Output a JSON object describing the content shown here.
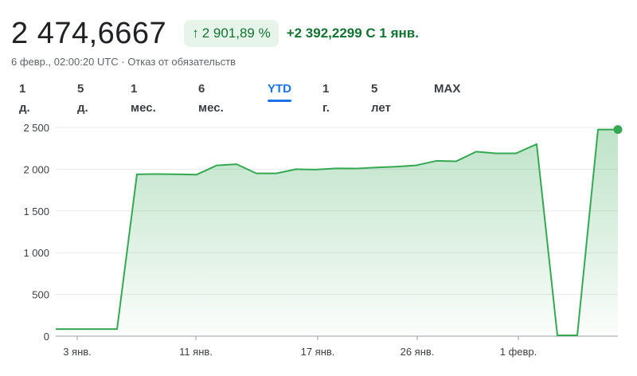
{
  "header": {
    "price": "2 474,6667",
    "change_percent": "2 901,89 %",
    "change_arrow": "↑",
    "change_abs": "+2 392,2299 С 1 янв.",
    "subline": "6 февр., 02:00:20 UTC · Отказ от обязательств"
  },
  "tabs": [
    "1 д.",
    "5 д.",
    "1 мес.",
    "6 мес.",
    "YTD",
    "1 г.",
    "5 лет",
    "MAX"
  ],
  "active_tab": "YTD",
  "colors": {
    "line": "#34a853",
    "positive": "#137333",
    "badge_bg": "#e6f4ea",
    "active_tab": "#1a73e8"
  },
  "chart_data": {
    "type": "area",
    "x_ticks": [
      "3 янв.",
      "11 янв.",
      "17 янв.",
      "26 янв.",
      "1 февр."
    ],
    "y_ticks": [
      "0",
      "500",
      "1 000",
      "1 500",
      "2 000",
      "2 500"
    ],
    "y_tick_values": [
      0,
      500,
      1000,
      1500,
      2000,
      2500
    ],
    "ylim": [
      0,
      2500
    ],
    "grid": true,
    "series": [
      {
        "values": [
          85,
          85,
          85,
          85,
          1940,
          1942,
          1940,
          1935,
          2045,
          2060,
          1950,
          1950,
          2000,
          1995,
          2010,
          2008,
          2020,
          2030,
          2045,
          2100,
          2095,
          2210,
          2190,
          2190,
          2300,
          10,
          10,
          2475,
          2475
        ]
      }
    ]
  }
}
